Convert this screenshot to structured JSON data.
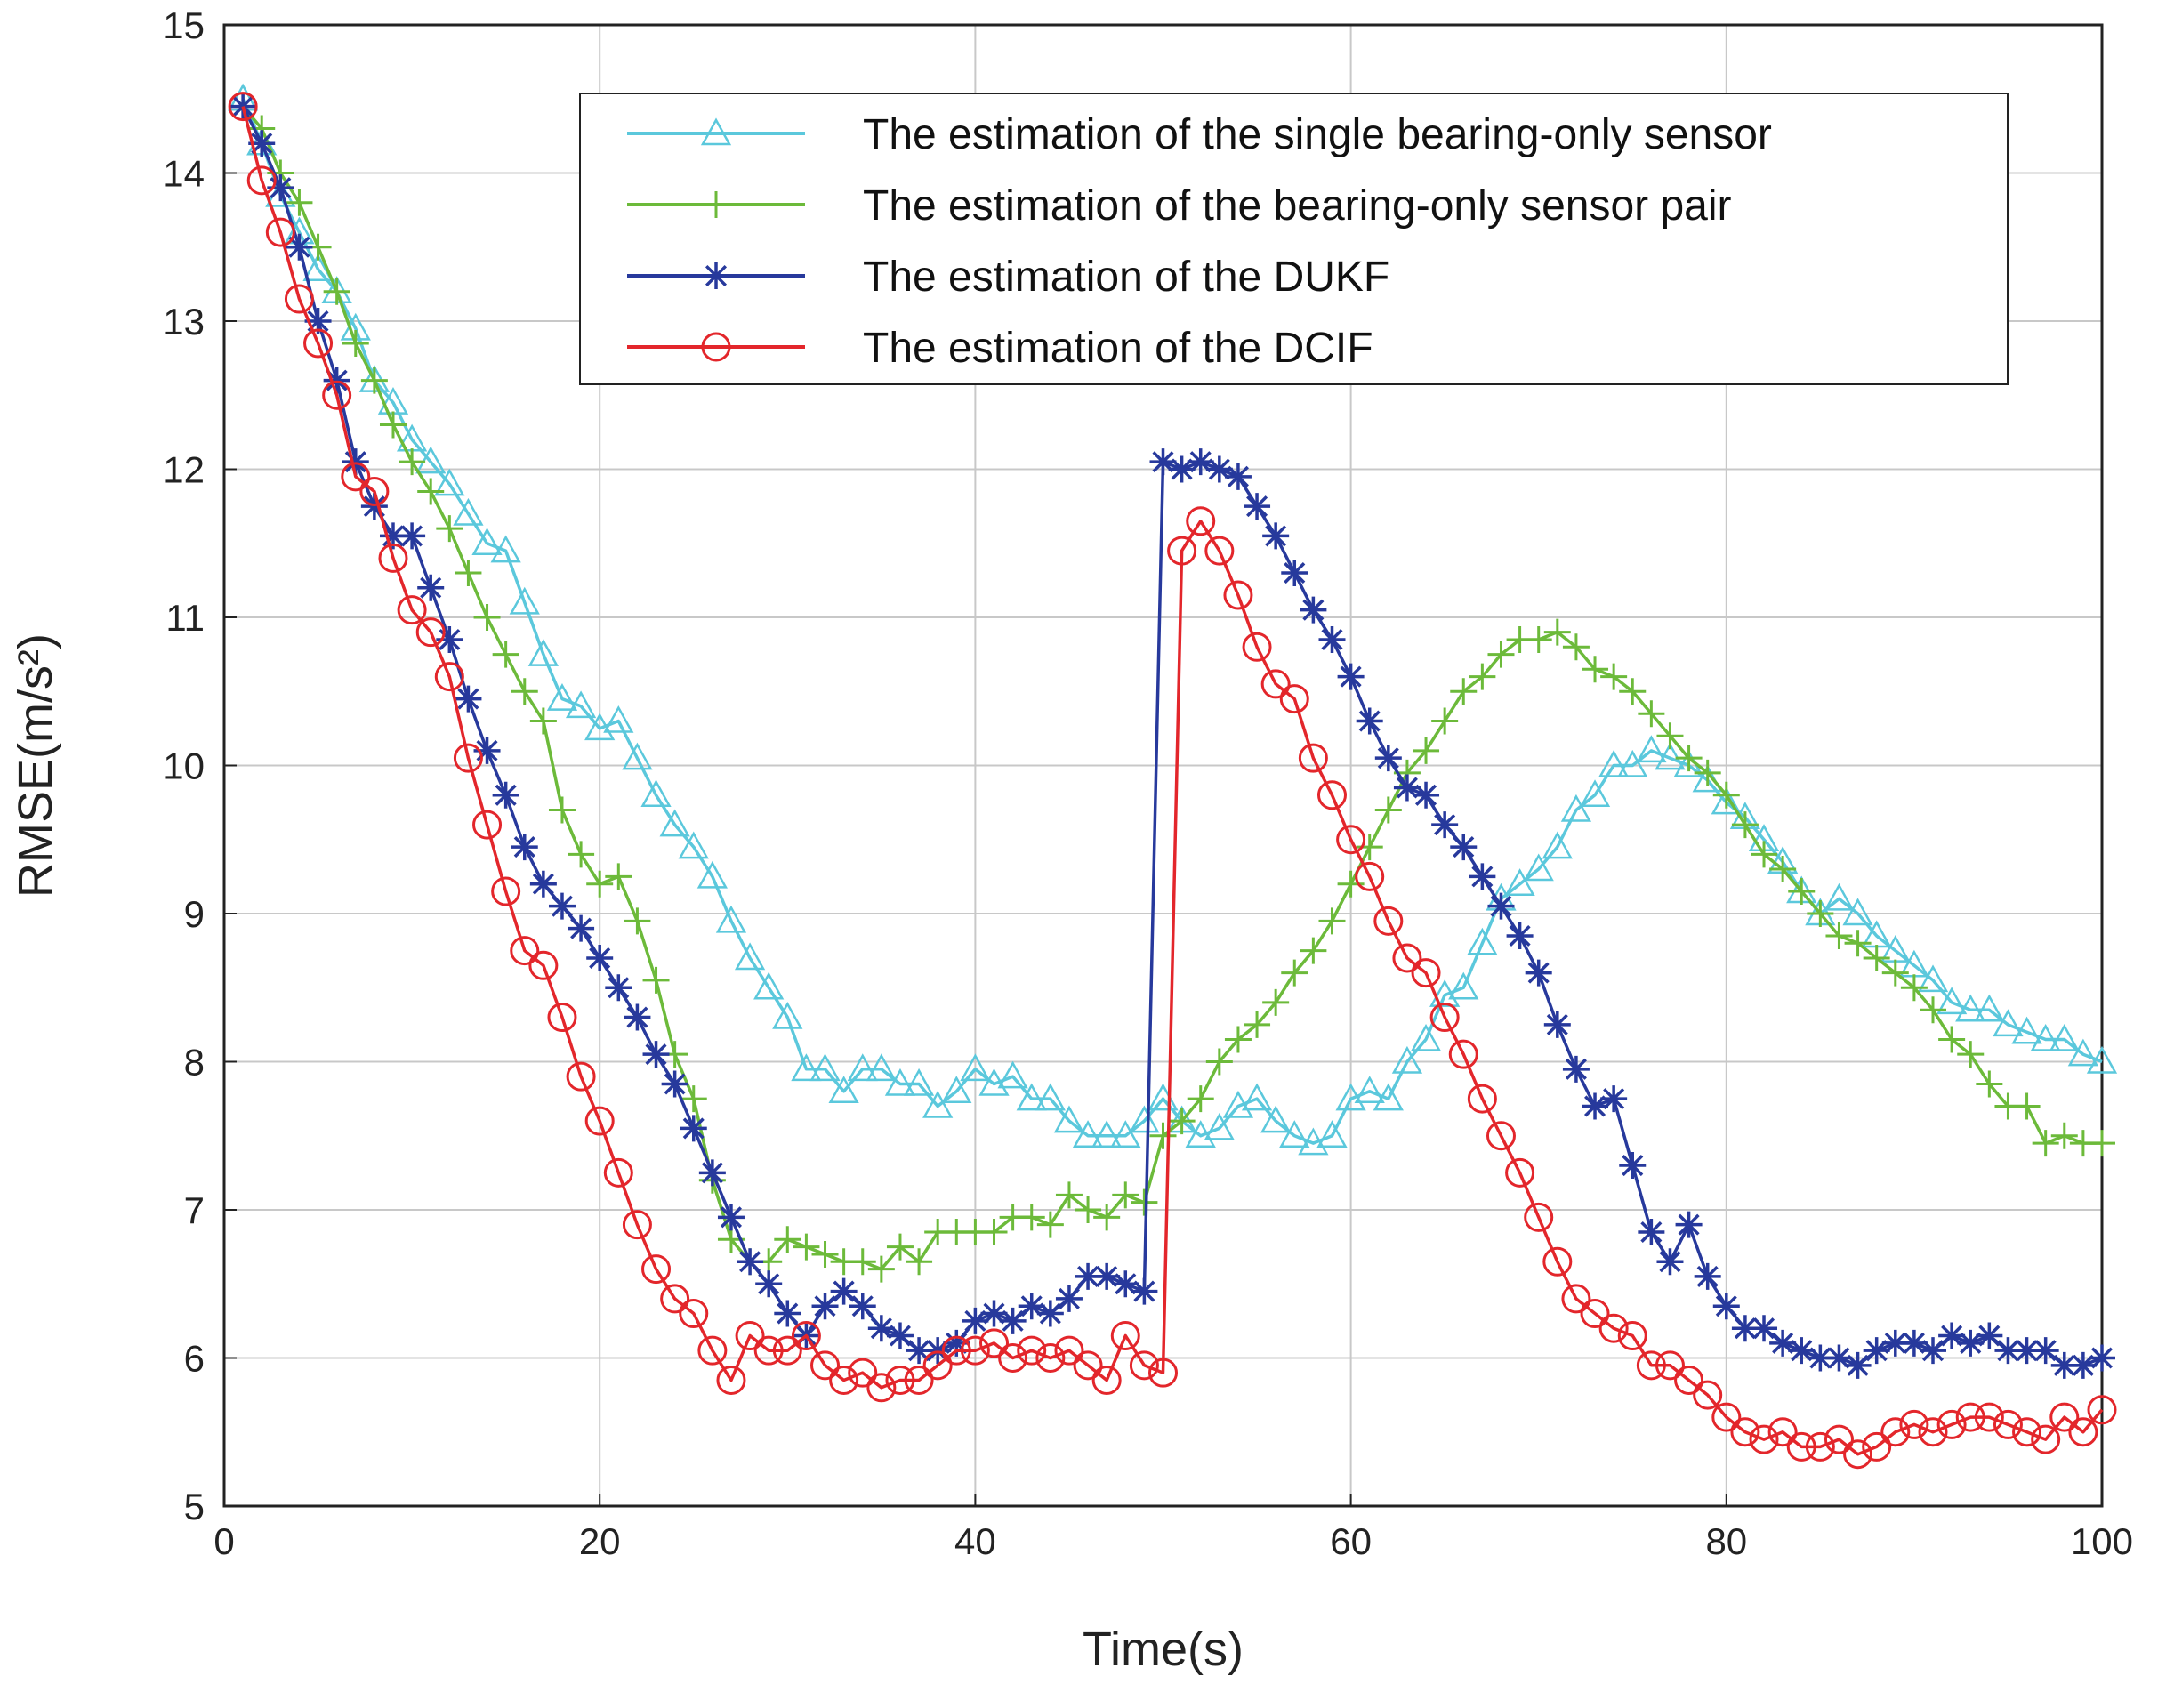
{
  "chart_data": {
    "type": "line",
    "title": "",
    "xlabel": "Time(s)",
    "ylabel": "RMSE(m/s²)",
    "xlim": [
      0,
      100
    ],
    "ylim": [
      5,
      15
    ],
    "xticks": [
      "0",
      "20",
      "40",
      "60",
      "80",
      "100"
    ],
    "yticks": [
      "5",
      "6",
      "7",
      "8",
      "9",
      "10",
      "11",
      "12",
      "13",
      "14",
      "15"
    ],
    "grid": true,
    "legend_position": "top-right",
    "x": [
      1,
      2,
      3,
      4,
      5,
      6,
      7,
      8,
      9,
      10,
      11,
      12,
      13,
      14,
      15,
      16,
      17,
      18,
      19,
      20,
      21,
      22,
      23,
      24,
      25,
      26,
      27,
      28,
      29,
      30,
      31,
      32,
      33,
      34,
      35,
      36,
      37,
      38,
      39,
      40,
      41,
      42,
      43,
      44,
      45,
      46,
      47,
      48,
      49,
      50,
      51,
      52,
      53,
      54,
      55,
      56,
      57,
      58,
      59,
      60,
      61,
      62,
      63,
      64,
      65,
      66,
      67,
      68,
      69,
      70,
      71,
      72,
      73,
      74,
      75,
      76,
      77,
      78,
      79,
      80,
      81,
      82,
      83,
      84,
      85,
      86,
      87,
      88,
      89,
      90,
      91,
      92,
      93,
      94,
      95,
      96,
      97,
      98,
      99,
      100
    ],
    "series": [
      {
        "name": "The estimation of the single bearing-only sensor",
        "color": "#5bc8dc",
        "marker": "triangle",
        "values": [
          14.5,
          14.2,
          13.85,
          13.6,
          13.35,
          13.2,
          12.95,
          12.6,
          12.45,
          12.2,
          12.05,
          11.9,
          11.7,
          11.5,
          11.45,
          11.1,
          10.75,
          10.45,
          10.4,
          10.25,
          10.3,
          10.05,
          9.8,
          9.6,
          9.45,
          9.25,
          8.95,
          8.7,
          8.5,
          8.3,
          7.95,
          7.95,
          7.8,
          7.95,
          7.95,
          7.85,
          7.85,
          7.7,
          7.8,
          7.95,
          7.85,
          7.9,
          7.75,
          7.75,
          7.6,
          7.5,
          7.5,
          7.5,
          7.6,
          7.75,
          7.6,
          7.5,
          7.55,
          7.7,
          7.75,
          7.6,
          7.5,
          7.45,
          7.5,
          7.75,
          7.8,
          7.75,
          8.0,
          8.15,
          8.45,
          8.5,
          8.8,
          9.1,
          9.2,
          9.3,
          9.45,
          9.7,
          9.8,
          10.0,
          10.0,
          10.1,
          10.05,
          10.0,
          9.9,
          9.75,
          9.65,
          9.5,
          9.35,
          9.15,
          9.0,
          9.1,
          9.0,
          8.85,
          8.75,
          8.65,
          8.55,
          8.4,
          8.35,
          8.35,
          8.25,
          8.2,
          8.15,
          8.15,
          8.05,
          8.0
        ]
      },
      {
        "name": "The estimation of the bearing-only sensor pair",
        "color": "#6cba3a",
        "marker": "plus",
        "values": [
          14.45,
          14.3,
          14.0,
          13.8,
          13.5,
          13.2,
          12.85,
          12.6,
          12.3,
          12.05,
          11.85,
          11.6,
          11.3,
          11.0,
          10.75,
          10.5,
          10.3,
          9.7,
          9.4,
          9.2,
          9.25,
          8.95,
          8.55,
          8.05,
          7.75,
          7.2,
          6.8,
          6.65,
          6.65,
          6.8,
          6.75,
          6.7,
          6.65,
          6.65,
          6.6,
          6.75,
          6.65,
          6.85,
          6.85,
          6.85,
          6.85,
          6.95,
          6.95,
          6.9,
          7.1,
          7.0,
          6.95,
          7.1,
          7.05,
          7.5,
          7.6,
          7.75,
          8.0,
          8.15,
          8.25,
          8.4,
          8.6,
          8.75,
          8.95,
          9.2,
          9.45,
          9.7,
          9.95,
          10.1,
          10.3,
          10.5,
          10.6,
          10.75,
          10.85,
          10.85,
          10.9,
          10.8,
          10.65,
          10.6,
          10.5,
          10.35,
          10.2,
          10.05,
          9.95,
          9.8,
          9.6,
          9.4,
          9.3,
          9.15,
          9.0,
          8.85,
          8.8,
          8.7,
          8.6,
          8.5,
          8.35,
          8.15,
          8.05,
          7.85,
          7.7,
          7.7,
          7.45,
          7.5,
          7.45,
          7.45
        ]
      },
      {
        "name": "The estimation of the DUKF",
        "color": "#27399c",
        "marker": "star",
        "values": [
          14.45,
          14.2,
          13.9,
          13.5,
          13.0,
          12.6,
          12.05,
          11.75,
          11.55,
          11.55,
          11.2,
          10.85,
          10.45,
          10.1,
          9.8,
          9.45,
          9.2,
          9.05,
          8.9,
          8.7,
          8.5,
          8.3,
          8.05,
          7.85,
          7.55,
          7.25,
          6.95,
          6.65,
          6.5,
          6.3,
          6.15,
          6.35,
          6.45,
          6.35,
          6.2,
          6.15,
          6.05,
          6.05,
          6.1,
          6.25,
          6.3,
          6.25,
          6.35,
          6.3,
          6.4,
          6.55,
          6.55,
          6.5,
          6.45,
          12.05,
          12.0,
          12.05,
          12.0,
          11.95,
          11.75,
          11.55,
          11.3,
          11.05,
          10.85,
          10.6,
          10.3,
          10.05,
          9.85,
          9.8,
          9.6,
          9.45,
          9.25,
          9.05,
          8.85,
          8.6,
          8.25,
          7.95,
          7.7,
          7.75,
          7.3,
          6.85,
          6.65,
          6.9,
          6.55,
          6.35,
          6.2,
          6.2,
          6.1,
          6.05,
          6.0,
          6.0,
          5.95,
          6.05,
          6.1,
          6.1,
          6.05,
          6.15,
          6.1,
          6.15,
          6.05,
          6.05,
          6.05,
          5.95,
          5.95,
          6.0
        ]
      },
      {
        "name": "The estimation of the DCIF",
        "color": "#e3262b",
        "marker": "circle",
        "values": [
          14.45,
          13.95,
          13.6,
          13.15,
          12.85,
          12.5,
          11.95,
          11.85,
          11.4,
          11.05,
          10.9,
          10.6,
          10.05,
          9.6,
          9.15,
          8.75,
          8.65,
          8.3,
          7.9,
          7.6,
          7.25,
          6.9,
          6.6,
          6.4,
          6.3,
          6.05,
          5.85,
          6.15,
          6.05,
          6.05,
          6.15,
          5.95,
          5.85,
          5.9,
          5.8,
          5.85,
          5.85,
          5.95,
          6.05,
          6.05,
          6.1,
          6.0,
          6.05,
          6.0,
          6.05,
          5.95,
          5.85,
          6.15,
          5.95,
          5.9,
          11.45,
          11.65,
          11.45,
          11.15,
          10.8,
          10.55,
          10.45,
          10.05,
          9.8,
          9.5,
          9.25,
          8.95,
          8.7,
          8.6,
          8.3,
          8.05,
          7.75,
          7.5,
          7.25,
          6.95,
          6.65,
          6.4,
          6.3,
          6.2,
          6.15,
          5.95,
          5.95,
          5.85,
          5.75,
          5.6,
          5.5,
          5.45,
          5.5,
          5.4,
          5.4,
          5.45,
          5.35,
          5.4,
          5.5,
          5.55,
          5.5,
          5.55,
          5.6,
          5.6,
          5.55,
          5.5,
          5.45,
          5.6,
          5.5,
          5.65
        ]
      }
    ]
  }
}
